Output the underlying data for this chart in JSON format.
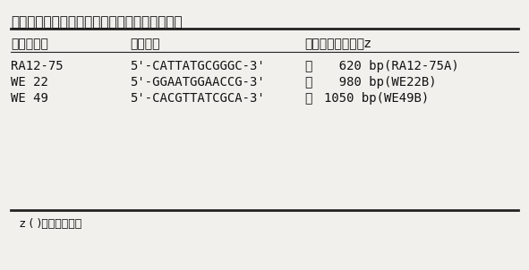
{
  "title": "表１　根こぶ病抵抗性遺伝子のＤＮＡマーカー",
  "header_col1": "プライマー",
  "header_col2": "塩基配列",
  "header_col3": "増幅されたバンド",
  "header_col3_super": "z",
  "rows": [
    {
      "col1": "RA12-75",
      "col2": "5'-CATTATGCGGGC-3'",
      "col3_pre": "約",
      "col3_num": "  620 bp(RA12-75A)"
    },
    {
      "col1": "WE 22",
      "col2": "5'-GGAATGGAACCG-3'",
      "col3_pre": "約",
      "col3_num": "  980 bp(WE22B)"
    },
    {
      "col1": "WE 49",
      "col2": "5'-CACGTTATCGCA-3'",
      "col3_pre": "約",
      "col3_num": "1050 bp(WE49B)"
    }
  ],
  "footnote_super": "z",
  "footnote_text": " ( )内はバンド名",
  "bg_color": "#f2f0ec",
  "text_color": "#111111",
  "line_color": "#222222",
  "fig_width": 5.91,
  "fig_height": 3.02,
  "dpi": 100
}
